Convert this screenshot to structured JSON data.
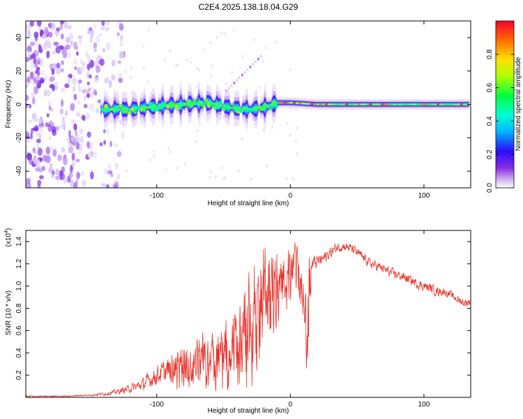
{
  "figure_title": "C2E4.2025.138.18.04.G29",
  "colors": {
    "snr_line": "#e8342c",
    "axis": "#000000"
  },
  "chart_data": [
    {
      "type": "heatmap",
      "title": "C2E4.2025.138.18.04.G29",
      "xlabel": "Height of straight line (km)",
      "ylabel": "Frequency (Hz)",
      "xlim": [
        -198,
        135
      ],
      "ylim": [
        -50,
        50
      ],
      "xticks": [
        -100,
        0,
        100
      ],
      "xtick_labels": [
        "-100",
        "0",
        "100"
      ],
      "yticks": [
        -40,
        -20,
        0,
        20,
        40
      ],
      "ytick_labels": [
        "-40",
        "-20",
        "0",
        "20",
        "40"
      ],
      "colorbar": {
        "label": "Normalized spectral amplitude",
        "range": [
          0,
          1
        ],
        "ticks": [
          0,
          0.2,
          0.4,
          0.6,
          0.8
        ],
        "tick_labels": [
          "0.0",
          "0.2",
          "0.4",
          "0.6",
          "0.8"
        ],
        "colormap": "rainbow (violet → blue → cyan → green → yellow → red)"
      },
      "ridge": {
        "description": "dominant spectral line near 0 Hz",
        "x_start": -142,
        "x_end": 135,
        "centre_freq": [
          [
            -142,
            -3
          ],
          [
            -120,
            -3
          ],
          [
            -100,
            -1
          ],
          [
            -80,
            0
          ],
          [
            -60,
            1
          ],
          [
            -45,
            -2
          ],
          [
            -30,
            -3
          ],
          [
            -20,
            -2
          ],
          [
            -10,
            1
          ],
          [
            0,
            1
          ],
          [
            20,
            0
          ],
          [
            60,
            0
          ],
          [
            100,
            0
          ],
          [
            135,
            0
          ]
        ],
        "noise_region_x": [
          -198,
          -132
        ]
      }
    },
    {
      "type": "line",
      "title": "",
      "xlabel": "Height of straight line (km)",
      "ylabel": "SNR (10 * v/v)",
      "y_multiplier": "(x10^4)",
      "y_multiplier_base": "(x10",
      "y_multiplier_exp": "4",
      "y_multiplier_close": ")",
      "xlim": [
        -198,
        135
      ],
      "ylim": [
        0,
        1.5
      ],
      "xticks": [
        -100,
        0,
        100
      ],
      "xtick_labels": [
        "-100",
        "0",
        "100"
      ],
      "yticks": [
        0.2,
        0.4,
        0.6,
        0.8,
        1.0,
        1.2,
        1.4
      ],
      "ytick_labels": [
        "0.2",
        "0.4",
        "0.6",
        "0.8",
        "1.0",
        "1.2",
        "1.4"
      ],
      "series": [
        {
          "name": "SNR",
          "x": [
            -198,
            -170,
            -150,
            -140,
            -130,
            -120,
            -110,
            -100,
            -90,
            -80,
            -70,
            -60,
            -50,
            -40,
            -35,
            -30,
            -25,
            -20,
            -15,
            -10,
            -5,
            0,
            5,
            10,
            12,
            14,
            16,
            20,
            25,
            30,
            35,
            40,
            45,
            50,
            55,
            60,
            65,
            70,
            75,
            80,
            85,
            90,
            95,
            100,
            105,
            110,
            115,
            120,
            125,
            130,
            135
          ],
          "y": [
            0.01,
            0.01,
            0.02,
            0.03,
            0.05,
            0.08,
            0.12,
            0.2,
            0.25,
            0.3,
            0.33,
            0.35,
            0.4,
            0.45,
            0.55,
            0.7,
            0.85,
            0.95,
            1.0,
            1.08,
            1.12,
            1.15,
            1.2,
            1.0,
            0.5,
            0.9,
            1.2,
            1.22,
            1.25,
            1.3,
            1.35,
            1.36,
            1.34,
            1.3,
            1.25,
            1.2,
            1.18,
            1.15,
            1.12,
            1.1,
            1.08,
            1.05,
            1.02,
            1.0,
            0.98,
            0.95,
            0.95,
            0.92,
            0.88,
            0.85,
            0.86
          ],
          "y_spread": [
            0.005,
            0.005,
            0.01,
            0.02,
            0.03,
            0.05,
            0.08,
            0.12,
            0.15,
            0.18,
            0.2,
            0.22,
            0.25,
            0.3,
            0.4,
            0.45,
            0.45,
            0.45,
            0.4,
            0.3,
            0.25,
            0.25,
            0.2,
            0.2,
            0.45,
            0.4,
            0.1,
            0.08,
            0.08,
            0.07,
            0.06,
            0.06,
            0.06,
            0.06,
            0.06,
            0.06,
            0.06,
            0.06,
            0.06,
            0.06,
            0.06,
            0.06,
            0.06,
            0.06,
            0.06,
            0.06,
            0.05,
            0.05,
            0.05,
            0.05,
            0.05
          ]
        }
      ]
    }
  ]
}
